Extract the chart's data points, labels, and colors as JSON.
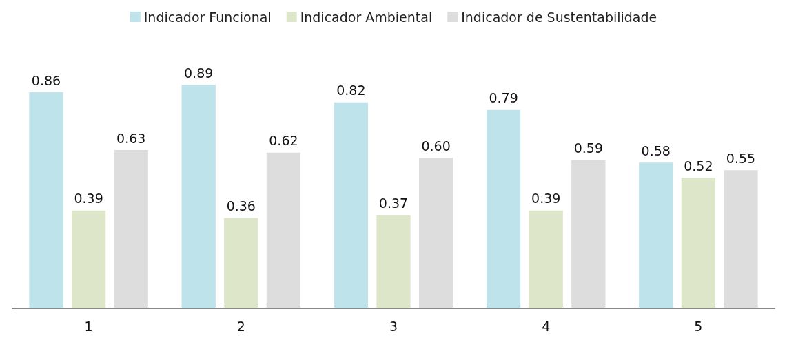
{
  "chart_data": {
    "type": "bar",
    "categories": [
      "1",
      "2",
      "3",
      "4",
      "5"
    ],
    "series": [
      {
        "name": "Indicador Funcional",
        "color": "#bee3ea",
        "values": [
          0.86,
          0.89,
          0.82,
          0.79,
          0.58
        ],
        "value_labels": [
          "0.86",
          "0.89",
          "0.82",
          "0.79",
          "0.58"
        ]
      },
      {
        "name": "Indicador Ambiental",
        "color": "#dde6c8",
        "values": [
          0.39,
          0.36,
          0.37,
          0.39,
          0.52
        ],
        "value_labels": [
          "0.39",
          "0.36",
          "0.37",
          "0.39",
          "0.52"
        ]
      },
      {
        "name": "Indicador de Sustentabilidade",
        "color": "#dddddd",
        "values": [
          0.63,
          0.62,
          0.6,
          0.59,
          0.55
        ],
        "value_labels": [
          "0.63",
          "0.62",
          "0.60",
          "0.59",
          "0.55"
        ]
      }
    ],
    "legend": "top"
  }
}
